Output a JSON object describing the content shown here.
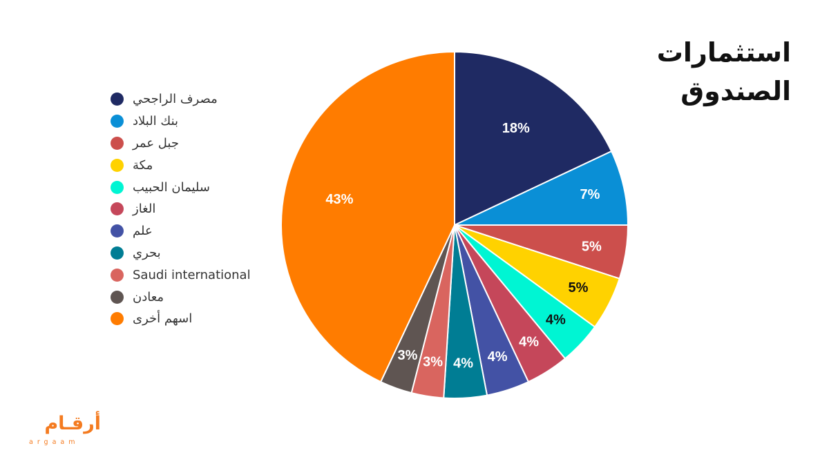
{
  "title": {
    "line1": "استثمارات",
    "line2": "الصندوق"
  },
  "logo": {
    "arabic": "أرقـام",
    "latin": "argaam"
  },
  "chart_data": {
    "type": "pie",
    "title": "استثمارات الصندوق",
    "legend_position": "left",
    "labels": [
      "مصرف الراجحي",
      "بنك البلاد",
      "جبل عمر",
      "مكة",
      "سليمان الحبيب",
      "الغاز",
      "علم",
      "بحري",
      "Saudi international",
      "معادن",
      "اسهم أخرى"
    ],
    "values": [
      18,
      7,
      5,
      5,
      4,
      4,
      4,
      4,
      3,
      3,
      43
    ],
    "value_labels": [
      "18%",
      "7%",
      "5%",
      "5%",
      "4%",
      "4%",
      "4%",
      "4%",
      "3%",
      "3%",
      "43%"
    ],
    "colors": [
      "#1f2a63",
      "#0a8fd6",
      "#cc4f4c",
      "#ffd200",
      "#00f5d3",
      "#c5475a",
      "#4352a5",
      "#007d94",
      "#d9655f",
      "#5f5552",
      "#ff7c00"
    ],
    "label_colors": [
      "#ffffff",
      "#ffffff",
      "#ffffff",
      "#111111",
      "#111111",
      "#ffffff",
      "#ffffff",
      "#ffffff",
      "#ffffff",
      "#ffffff",
      "#ffffff"
    ]
  }
}
